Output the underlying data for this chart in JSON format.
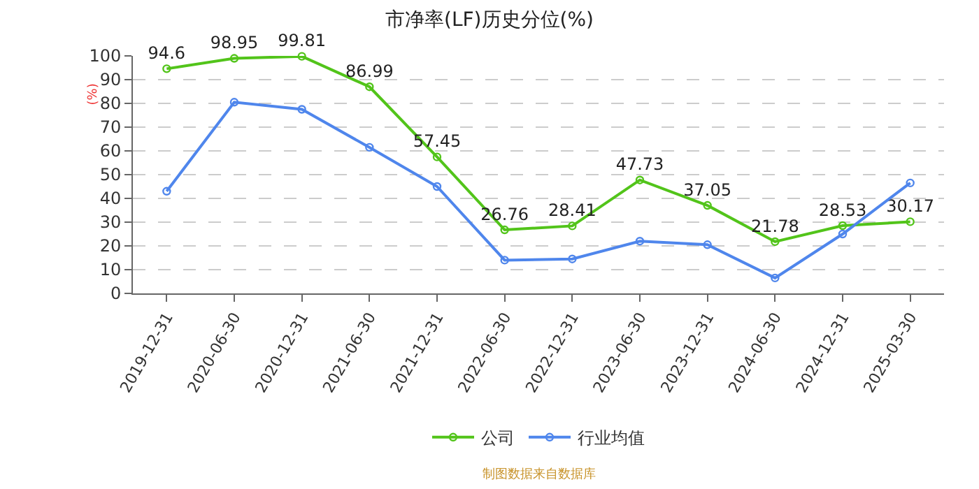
{
  "chart_data": {
    "type": "line",
    "title": "市净率(LF)历史分位(%)",
    "ylabel": "(%)",
    "categories": [
      "2019-12-31",
      "2020-06-30",
      "2020-12-31",
      "2021-06-30",
      "2021-12-31",
      "2022-06-30",
      "2022-12-31",
      "2023-06-30",
      "2023-12-31",
      "2024-06-30",
      "2024-12-31",
      "2025-03-30"
    ],
    "series": [
      {
        "name": "公司",
        "color": "#52c41a",
        "values": [
          94.6,
          98.95,
          99.81,
          86.99,
          57.45,
          26.76,
          28.41,
          47.73,
          37.05,
          21.78,
          28.53,
          30.17
        ],
        "value_labels": [
          "94.6",
          "98.95",
          "99.81",
          "86.99",
          "57.45",
          "26.76",
          "28.41",
          "47.73",
          "37.05",
          "21.78",
          "28.53",
          "30.17"
        ]
      },
      {
        "name": "行业均值",
        "color": "#4f86ec",
        "values": [
          43,
          80.5,
          77.5,
          61.5,
          45,
          14,
          14.5,
          22,
          20.5,
          6.5,
          25,
          46.5
        ]
      }
    ],
    "ylim": [
      0,
      100
    ],
    "yticks": [
      0,
      10,
      20,
      30,
      40,
      50,
      60,
      70,
      80,
      90,
      100
    ],
    "grid": "y",
    "legend": "bottom",
    "marker": "circle",
    "line_style": "solid",
    "annotations": [
      "制图数据来自数据库"
    ]
  }
}
